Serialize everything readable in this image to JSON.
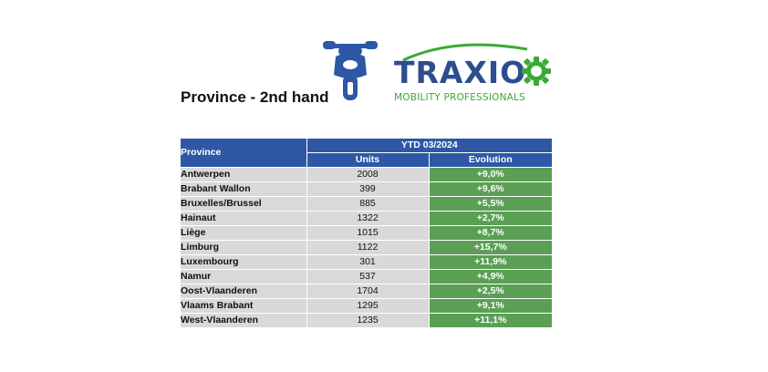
{
  "title": "Province - 2nd hand",
  "logo": {
    "word": "TRAXIO",
    "tagline": "MOBILITY PROFESSIONALS",
    "brand_blue": "#2e4d8f",
    "brand_green": "#3aa935"
  },
  "icons": {
    "motorcycle": "motorcycle-icon",
    "gear": "gear-icon"
  },
  "table": {
    "header": {
      "province": "Province",
      "period": "YTD 03/2024",
      "units": "Units",
      "evolution": "Evolution"
    },
    "colors": {
      "header_bg": "#2e58a6",
      "row_bg": "#d9d9d9",
      "evolution_bg": "#5b9f55"
    },
    "rows": [
      {
        "province": "Antwerpen",
        "units": "2008",
        "evolution": "+9,0%"
      },
      {
        "province": "Brabant Wallon",
        "units": "399",
        "evolution": "+9,6%"
      },
      {
        "province": "Bruxelles/Brussel",
        "units": "885",
        "evolution": "+5,5%"
      },
      {
        "province": "Hainaut",
        "units": "1322",
        "evolution": "+2,7%"
      },
      {
        "province": "Liège",
        "units": "1015",
        "evolution": "+8,7%"
      },
      {
        "province": "Limburg",
        "units": "1122",
        "evolution": "+15,7%"
      },
      {
        "province": "Luxembourg",
        "units": "301",
        "evolution": "+11,9%"
      },
      {
        "province": "Namur",
        "units": "537",
        "evolution": "+4,9%"
      },
      {
        "province": "Oost-Vlaanderen",
        "units": "1704",
        "evolution": "+2,5%"
      },
      {
        "province": "Vlaams Brabant",
        "units": "1295",
        "evolution": "+9,1%"
      },
      {
        "province": "West-Vlaanderen",
        "units": "1235",
        "evolution": "+11,1%"
      }
    ]
  }
}
